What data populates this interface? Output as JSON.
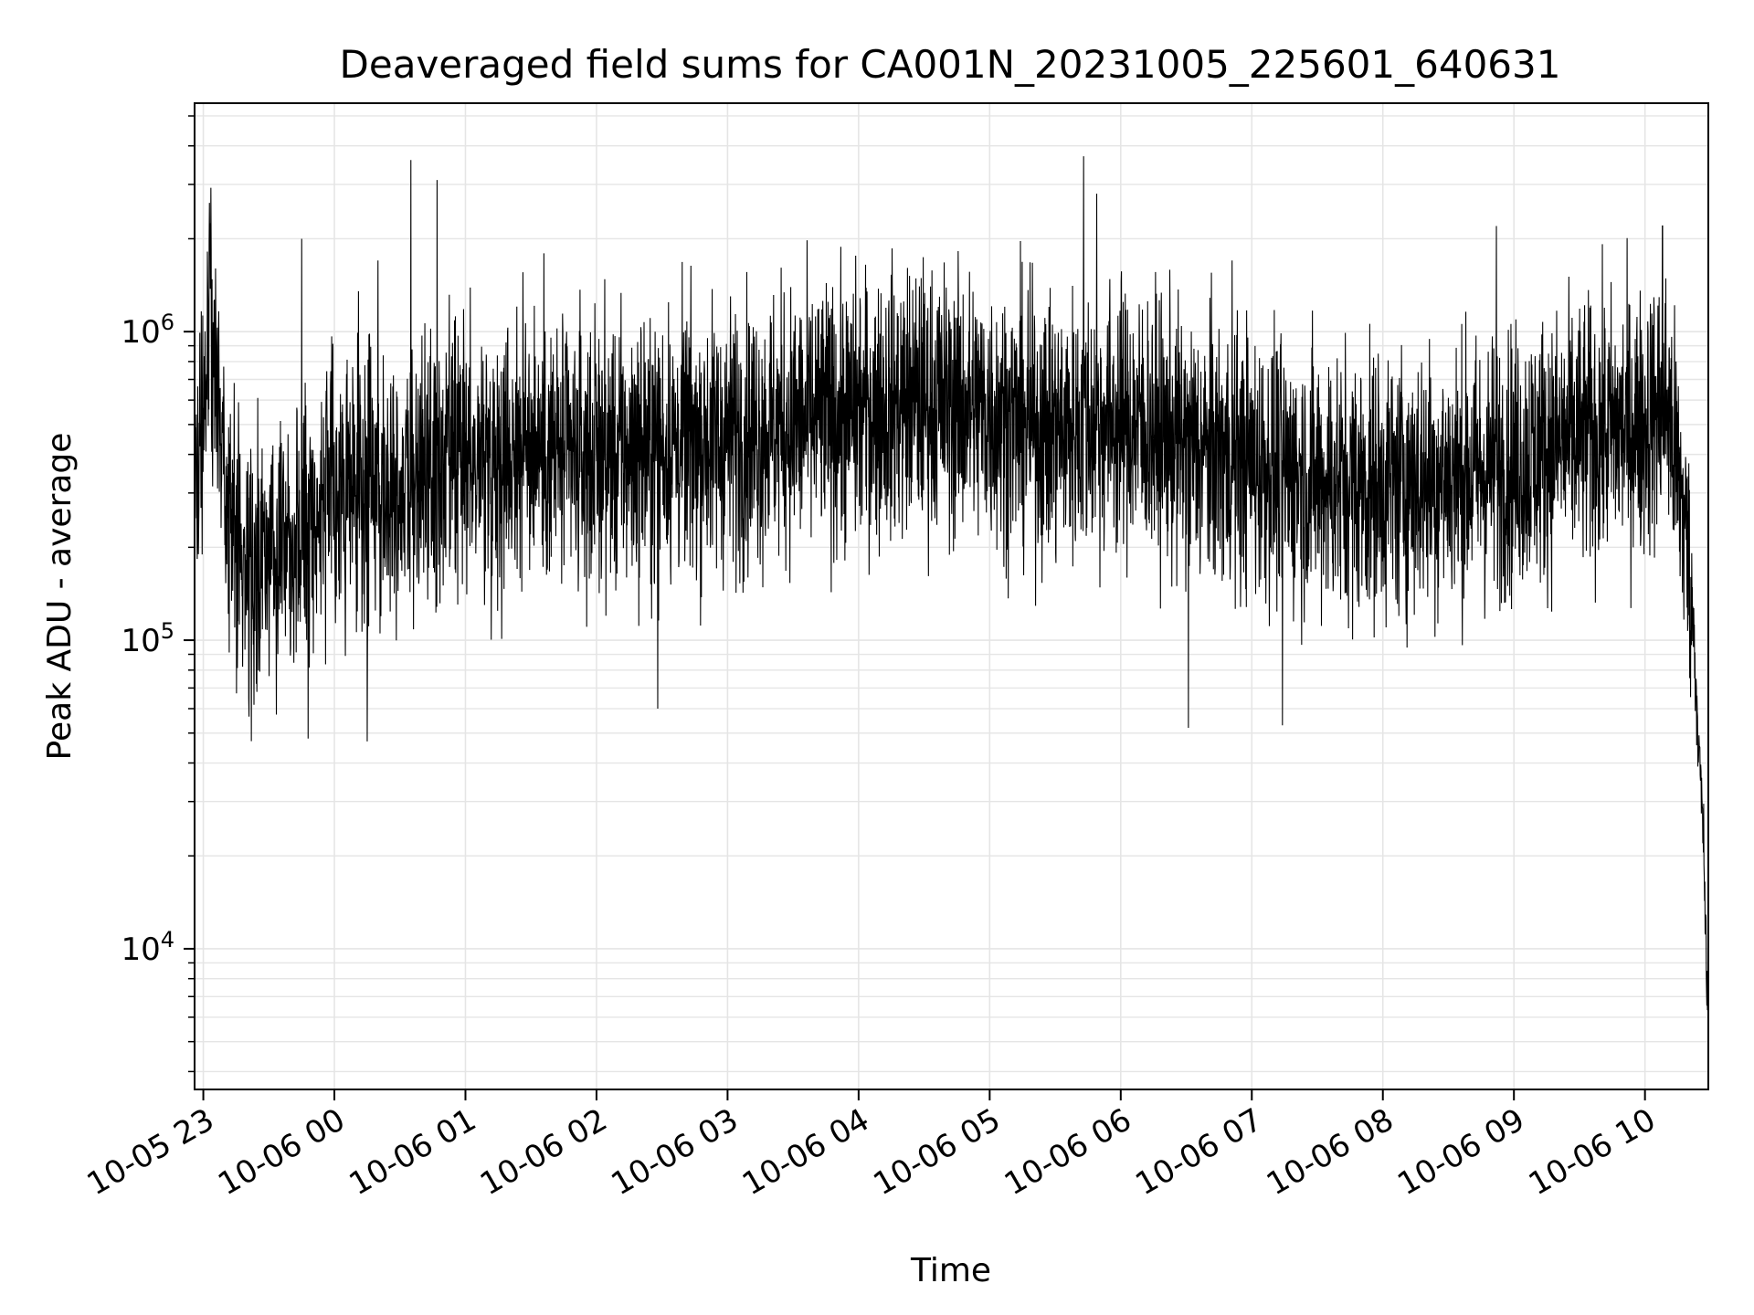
{
  "chart_data": {
    "type": "line",
    "title": "Deaveraged field sums for CA001N_20231005_225601_640631",
    "xlabel": "Time",
    "ylabel": "Peak ADU - average",
    "x_scale": "time",
    "y_scale": "log",
    "xlim": [
      "2023-10-05 22:56",
      "2023-10-06 10:29"
    ],
    "ylim": [
      3500,
      5500000
    ],
    "x_ticks": [
      "2023-10-05 23:00",
      "2023-10-06 00:00",
      "2023-10-06 01:00",
      "2023-10-06 02:00",
      "2023-10-06 03:00",
      "2023-10-06 04:00",
      "2023-10-06 05:00",
      "2023-10-06 06:00",
      "2023-10-06 07:00",
      "2023-10-06 08:00",
      "2023-10-06 09:00",
      "2023-10-06 10:00"
    ],
    "x_tick_labels": [
      "10-05 23",
      "10-06 00",
      "10-06 01",
      "10-06 02",
      "10-06 03",
      "10-06 04",
      "10-06 05",
      "10-06 06",
      "10-06 07",
      "10-06 08",
      "10-06 09",
      "10-06 10"
    ],
    "y_ticks": [
      {
        "value": 10000,
        "base": "10",
        "exp": "4"
      },
      {
        "value": 100000,
        "base": "10",
        "exp": "5"
      },
      {
        "value": 1000000,
        "base": "10",
        "exp": "6"
      }
    ],
    "grid": true,
    "line_color": "#000000",
    "grid_color": "#e5e5e5",
    "series": [
      {
        "points": [
          [
            "2023-10-05 22:56",
            300000
          ],
          [
            "2023-10-05 23:00",
            500000
          ],
          [
            "2023-10-05 23:03",
            1300000
          ],
          [
            "2023-10-05 23:06",
            700000
          ],
          [
            "2023-10-05 23:12",
            250000
          ],
          [
            "2023-10-05 23:18",
            180000
          ],
          [
            "2023-10-05 23:24",
            150000
          ],
          [
            "2023-10-05 23:30",
            200000
          ],
          [
            "2023-10-05 23:36",
            250000
          ],
          [
            "2023-10-05 23:42",
            220000
          ],
          [
            "2023-10-05 23:48",
            250000
          ],
          [
            "2023-10-05 23:54",
            280000
          ],
          [
            "2023-10-06 00:00",
            300000
          ],
          [
            "2023-10-06 00:10",
            300000
          ],
          [
            "2023-10-06 00:20",
            320000
          ],
          [
            "2023-10-06 00:30",
            320000
          ],
          [
            "2023-10-06 00:40",
            330000
          ],
          [
            "2023-10-06 00:50",
            350000
          ],
          [
            "2023-10-06 01:00",
            380000
          ],
          [
            "2023-10-06 01:10",
            400000
          ],
          [
            "2023-10-06 01:20",
            420000
          ],
          [
            "2023-10-06 01:30",
            450000
          ],
          [
            "2023-10-06 01:40",
            400000
          ],
          [
            "2023-10-06 01:50",
            380000
          ],
          [
            "2023-10-06 02:00",
            400000
          ],
          [
            "2023-10-06 02:15",
            400000
          ],
          [
            "2023-10-06 02:30",
            420000
          ],
          [
            "2023-10-06 02:45",
            440000
          ],
          [
            "2023-10-06 03:00",
            450000
          ],
          [
            "2023-10-06 03:15",
            480000
          ],
          [
            "2023-10-06 03:30",
            500000
          ],
          [
            "2023-10-06 03:45",
            520000
          ],
          [
            "2023-10-06 04:00",
            550000
          ],
          [
            "2023-10-06 04:15",
            580000
          ],
          [
            "2023-10-06 04:30",
            600000
          ],
          [
            "2023-10-06 04:45",
            580000
          ],
          [
            "2023-10-06 05:00",
            550000
          ],
          [
            "2023-10-06 05:15",
            500000
          ],
          [
            "2023-10-06 05:30",
            480000
          ],
          [
            "2023-10-06 05:45",
            500000
          ],
          [
            "2023-10-06 06:00",
            520000
          ],
          [
            "2023-10-06 06:15",
            480000
          ],
          [
            "2023-10-06 06:30",
            420000
          ],
          [
            "2023-10-06 06:45",
            400000
          ],
          [
            "2023-10-06 07:00",
            380000
          ],
          [
            "2023-10-06 07:15",
            350000
          ],
          [
            "2023-10-06 07:30",
            330000
          ],
          [
            "2023-10-06 07:45",
            320000
          ],
          [
            "2023-10-06 08:00",
            320000
          ],
          [
            "2023-10-06 08:15",
            330000
          ],
          [
            "2023-10-06 08:30",
            340000
          ],
          [
            "2023-10-06 08:45",
            350000
          ],
          [
            "2023-10-06 09:00",
            380000
          ],
          [
            "2023-10-06 09:15",
            420000
          ],
          [
            "2023-10-06 09:30",
            450000
          ],
          [
            "2023-10-06 09:45",
            480000
          ],
          [
            "2023-10-06 10:00",
            500000
          ],
          [
            "2023-10-06 10:10",
            600000
          ],
          [
            "2023-10-06 10:18",
            250000
          ],
          [
            "2023-10-06 10:22",
            120000
          ],
          [
            "2023-10-06 10:25",
            40000
          ],
          [
            "2023-10-06 10:27",
            20000
          ],
          [
            "2023-10-06 10:29",
            4500
          ]
        ]
      }
    ],
    "spikes": [
      [
        "2023-10-05 23:45",
        2000000
      ],
      [
        "2023-10-06 00:20",
        1700000
      ],
      [
        "2023-10-06 00:35",
        3600000
      ],
      [
        "2023-10-06 00:47",
        3100000
      ],
      [
        "2023-10-06 05:43",
        3700000
      ],
      [
        "2023-10-06 05:49",
        2800000
      ],
      [
        "2023-10-06 06:51",
        1700000
      ],
      [
        "2023-10-06 08:52",
        2200000
      ],
      [
        "2023-10-06 10:08",
        2200000
      ],
      [
        "2023-10-06 00:15",
        47000
      ],
      [
        "2023-10-05 23:48",
        48000
      ],
      [
        "2023-10-06 06:31",
        52000
      ],
      [
        "2023-10-06 02:28",
        60000
      ],
      [
        "2023-10-06 07:14",
        53000
      ]
    ],
    "series_display": {
      "seed": 640631,
      "noise_spread": 1.0
    }
  }
}
